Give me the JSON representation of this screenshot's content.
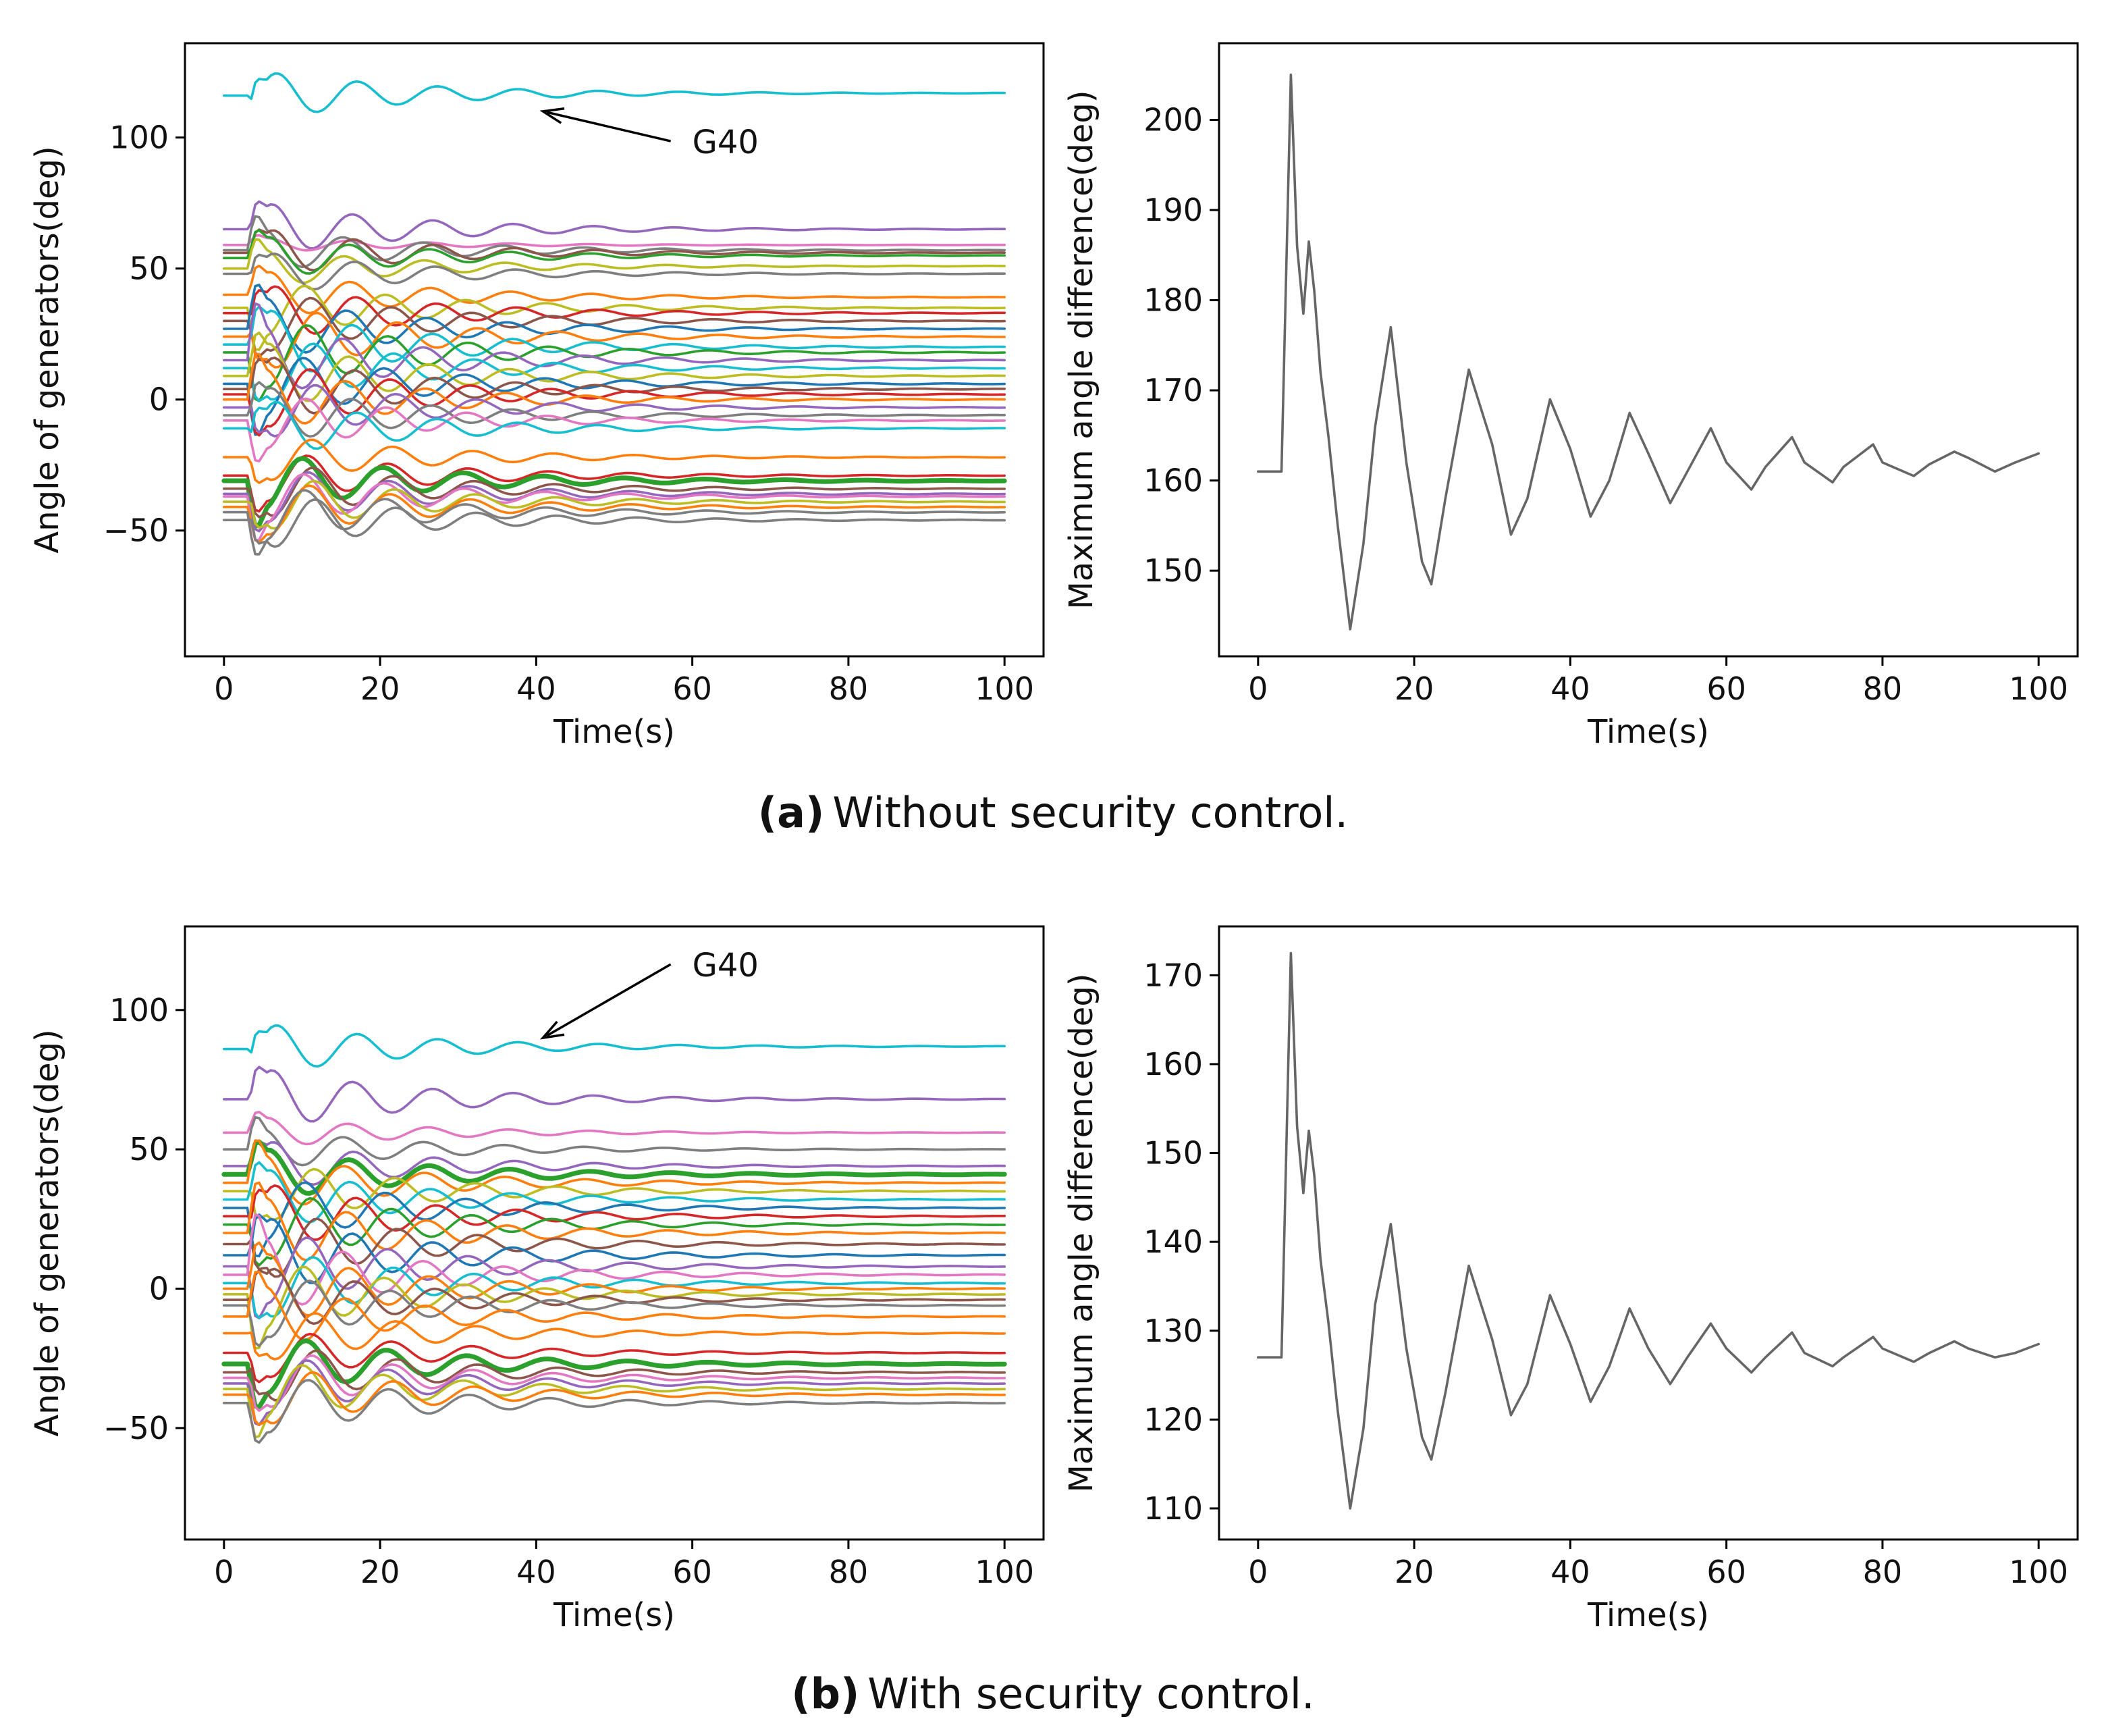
{
  "chart_data": [
    {
      "type": "line",
      "panel": "a-left",
      "xlabel": "Time(s)",
      "ylabel": "Angle of generators(deg)",
      "xlim": [
        -5,
        105
      ],
      "ylim": [
        -98,
        136
      ],
      "xticks": [
        0,
        20,
        40,
        60,
        80,
        100
      ],
      "yticks": [
        -50,
        0,
        50,
        100
      ],
      "grid": false,
      "legend": "none",
      "annotation": {
        "text": "G40",
        "arrow_to": [
          40,
          110
        ],
        "text_at": [
          60,
          95
        ]
      },
      "series": [
        {
          "base": 116,
          "final": 117,
          "amp": 10,
          "color": "#17becf",
          "label_point": "G40"
        },
        {
          "base": 65,
          "final": 65,
          "amp": 11,
          "color": "#9467bd"
        },
        {
          "base": 59,
          "final": 59,
          "amp": 3,
          "color": "#e377c2"
        },
        {
          "base": 57,
          "final": 57,
          "amp": 9,
          "color": "#7f7f7f"
        },
        {
          "base": 56,
          "final": 56,
          "amp": 10,
          "color": "#8c564b"
        },
        {
          "base": 54,
          "final": 55,
          "amp": 9,
          "color": "#2ca02c"
        },
        {
          "base": 50,
          "final": 51,
          "amp": 8,
          "color": "#bcbd22"
        },
        {
          "base": 48,
          "final": 48,
          "amp": 9,
          "color": "#7f7f7f"
        },
        {
          "base": 40,
          "final": 39,
          "amp": 10,
          "color": "#ff7f0e"
        },
        {
          "base": 35,
          "final": 35,
          "amp": 12,
          "color": "#bcbd22"
        },
        {
          "base": 33,
          "final": 33,
          "amp": 12,
          "color": "#d62728"
        },
        {
          "base": 30,
          "final": 30,
          "amp": 13,
          "color": "#8c564b"
        },
        {
          "base": 27,
          "final": 27,
          "amp": 13,
          "color": "#1f77b4"
        },
        {
          "base": 24,
          "final": 24,
          "amp": 14,
          "color": "#ff7f0e"
        },
        {
          "base": 21,
          "final": 20,
          "amp": 15,
          "color": "#17becf"
        },
        {
          "base": 18,
          "final": 18,
          "amp": 15,
          "color": "#2ca02c"
        },
        {
          "base": 15,
          "final": 15,
          "amp": 15,
          "color": "#9467bd"
        },
        {
          "base": 12,
          "final": 12,
          "amp": 14,
          "color": "#17becf"
        },
        {
          "base": 9,
          "final": 9,
          "amp": 14,
          "color": "#bcbd22"
        },
        {
          "base": 6,
          "final": 6,
          "amp": 14,
          "color": "#1f77b4"
        },
        {
          "base": 4,
          "final": 4,
          "amp": 14,
          "color": "#8c564b"
        },
        {
          "base": 2,
          "final": 2,
          "amp": 14,
          "color": "#d62728"
        },
        {
          "base": 0,
          "final": 0,
          "amp": 13,
          "color": "#ff7f0e"
        },
        {
          "base": -3,
          "final": -3,
          "amp": 13,
          "color": "#9467bd"
        },
        {
          "base": -6,
          "final": -6,
          "amp": 12,
          "color": "#7f7f7f"
        },
        {
          "base": -8,
          "final": -8,
          "amp": 12,
          "color": "#e377c2"
        },
        {
          "base": -11,
          "final": -11,
          "amp": 12,
          "color": "#17becf"
        },
        {
          "base": -22,
          "final": -22,
          "amp": 10,
          "color": "#ff7f0e"
        },
        {
          "base": -29,
          "final": -29,
          "amp": 11,
          "color": "#d62728"
        },
        {
          "base": -31,
          "final": -31,
          "amp": 12,
          "color": "#2ca02c",
          "thick": true
        },
        {
          "base": -34,
          "final": -34,
          "amp": 12,
          "color": "#8c564b"
        },
        {
          "base": -36,
          "final": -36,
          "amp": 12,
          "color": "#9467bd"
        },
        {
          "base": -37,
          "final": -37,
          "amp": 12,
          "color": "#e377c2"
        },
        {
          "base": -39,
          "final": -39,
          "amp": 12,
          "color": "#bcbd22"
        },
        {
          "base": -41,
          "final": -41,
          "amp": 12,
          "color": "#ff7f0e"
        },
        {
          "base": -43,
          "final": -43,
          "amp": 12,
          "color": "#7f7f7f"
        },
        {
          "base": -46,
          "final": -46,
          "amp": 12,
          "color": "#7f7f7f"
        }
      ]
    },
    {
      "type": "line",
      "panel": "a-right",
      "xlabel": "Time(s)",
      "ylabel": "Maximum angle difference(deg)",
      "xlim": [
        -5,
        105
      ],
      "ylim": [
        140.5,
        208.5
      ],
      "xticks": [
        0,
        20,
        40,
        60,
        80,
        100
      ],
      "yticks": [
        150,
        160,
        170,
        180,
        190,
        200
      ],
      "grid": false,
      "legend": "none",
      "series": [
        {
          "color": "#666666",
          "x": [
            0,
            3,
            4.2,
            5,
            5.8,
            6.5,
            7.2,
            8,
            9,
            10.2,
            11.8,
            13.5,
            15,
            17,
            19,
            21,
            22.2,
            24,
            27,
            30,
            32.4,
            34.5,
            37.4,
            40,
            42.6,
            45,
            47.6,
            50,
            52.8,
            55,
            58,
            60,
            63.2,
            65,
            68.4,
            70,
            73.6,
            75,
            78.8,
            80,
            84,
            86,
            89.2,
            91,
            94.4,
            97,
            100
          ],
          "y": [
            161,
            161,
            205,
            186,
            178.5,
            186.5,
            181,
            172,
            165,
            155,
            143.5,
            153,
            166,
            177,
            162,
            151,
            148.5,
            158,
            172.3,
            164,
            154,
            158,
            169,
            163.5,
            156,
            160,
            167.5,
            163,
            157.5,
            161,
            165.8,
            162,
            159,
            161.5,
            164.8,
            162,
            159.8,
            161.5,
            164,
            162,
            160.5,
            161.8,
            163.2,
            162.5,
            161,
            162,
            163
          ]
        }
      ]
    },
    {
      "type": "line",
      "panel": "b-left",
      "xlabel": "Time(s)",
      "ylabel": "Angle of generators(deg)",
      "xlim": [
        -5,
        105
      ],
      "ylim": [
        -90,
        130
      ],
      "xticks": [
        0,
        20,
        40,
        60,
        80,
        100
      ],
      "yticks": [
        -50,
        0,
        50,
        100
      ],
      "grid": false,
      "legend": "none",
      "annotation": {
        "text": "G40",
        "arrow_to": [
          40,
          90
        ],
        "text_at": [
          60,
          113
        ]
      },
      "series": [
        {
          "base": 86,
          "final": 87,
          "amp": 10,
          "color": "#17becf",
          "label_point": "G40"
        },
        {
          "base": 68,
          "final": 68,
          "amp": 12,
          "color": "#9467bd"
        },
        {
          "base": 56,
          "final": 56,
          "amp": 6,
          "color": "#e377c2"
        },
        {
          "base": 50,
          "final": 50,
          "amp": 8,
          "color": "#7f7f7f"
        },
        {
          "base": 44,
          "final": 44,
          "amp": 10,
          "color": "#9467bd"
        },
        {
          "base": 41,
          "final": 41,
          "amp": 10,
          "color": "#2ca02c",
          "thick": true
        },
        {
          "base": 38,
          "final": 38,
          "amp": 11,
          "color": "#ff7f0e"
        },
        {
          "base": 35,
          "final": 35,
          "amp": 12,
          "color": "#bcbd22"
        },
        {
          "base": 32,
          "final": 32,
          "amp": 12,
          "color": "#17becf"
        },
        {
          "base": 29,
          "final": 29,
          "amp": 13,
          "color": "#1f77b4"
        },
        {
          "base": 26,
          "final": 26,
          "amp": 13,
          "color": "#d62728"
        },
        {
          "base": 23,
          "final": 23,
          "amp": 14,
          "color": "#2ca02c"
        },
        {
          "base": 20,
          "final": 20,
          "amp": 14,
          "color": "#ff7f0e"
        },
        {
          "base": 16,
          "final": 16,
          "amp": 14,
          "color": "#8c564b"
        },
        {
          "base": 12,
          "final": 12,
          "amp": 15,
          "color": "#1f77b4"
        },
        {
          "base": 8,
          "final": 8,
          "amp": 15,
          "color": "#9467bd"
        },
        {
          "base": 5,
          "final": 5,
          "amp": 15,
          "color": "#e377c2"
        },
        {
          "base": 2,
          "final": 2,
          "amp": 14,
          "color": "#17becf"
        },
        {
          "base": 0,
          "final": 0,
          "amp": 14,
          "color": "#ff7f0e"
        },
        {
          "base": -2,
          "final": -2,
          "amp": 14,
          "color": "#bcbd22"
        },
        {
          "base": -4,
          "final": -4,
          "amp": 13,
          "color": "#8c564b"
        },
        {
          "base": -6,
          "final": -6,
          "amp": 13,
          "color": "#7f7f7f"
        },
        {
          "base": -10,
          "final": -10,
          "amp": 12,
          "color": "#ff7f0e"
        },
        {
          "base": -16,
          "final": -16,
          "amp": 11,
          "color": "#ff7f0e"
        },
        {
          "base": -23,
          "final": -23,
          "amp": 10,
          "color": "#d62728"
        },
        {
          "base": -27,
          "final": -27,
          "amp": 12,
          "color": "#2ca02c",
          "thick": true
        },
        {
          "base": -30,
          "final": -30,
          "amp": 12,
          "color": "#8c564b"
        },
        {
          "base": -32,
          "final": -32,
          "amp": 12,
          "color": "#e377c2"
        },
        {
          "base": -34,
          "final": -34,
          "amp": 12,
          "color": "#9467bd"
        },
        {
          "base": -36,
          "final": -36,
          "amp": 12,
          "color": "#bcbd22"
        },
        {
          "base": -38,
          "final": -38,
          "amp": 12,
          "color": "#ff7f0e"
        },
        {
          "base": -41,
          "final": -41,
          "amp": 12,
          "color": "#7f7f7f"
        }
      ]
    },
    {
      "type": "line",
      "panel": "b-right",
      "xlabel": "Time(s)",
      "ylabel": "Maximum angle difference(deg)",
      "xlim": [
        -5,
        105
      ],
      "ylim": [
        106.5,
        175.5
      ],
      "xticks": [
        0,
        20,
        40,
        60,
        80,
        100
      ],
      "yticks": [
        110,
        120,
        130,
        140,
        150,
        160,
        170
      ],
      "grid": false,
      "legend": "none",
      "series": [
        {
          "color": "#666666",
          "x": [
            0,
            3,
            4.2,
            5,
            5.8,
            6.5,
            7.2,
            8,
            9,
            10.2,
            11.8,
            13.5,
            15,
            17,
            19,
            21,
            22.2,
            24,
            27,
            30,
            32.4,
            34.5,
            37.4,
            40,
            42.6,
            45,
            47.6,
            50,
            52.8,
            55,
            58,
            60,
            63.2,
            65,
            68.4,
            70,
            73.6,
            75,
            78.8,
            80,
            84,
            86,
            89.2,
            91,
            94.4,
            97,
            100
          ],
          "y": [
            127,
            127,
            172.5,
            153,
            145.5,
            152.5,
            147.5,
            138,
            131,
            121,
            110,
            119,
            133,
            142,
            128,
            118,
            115.5,
            123,
            137.3,
            129,
            120.5,
            124,
            134,
            128.5,
            122,
            126,
            132.5,
            128,
            124,
            127,
            130.8,
            128,
            125.3,
            127,
            129.8,
            127.5,
            126,
            127,
            129.3,
            128,
            126.5,
            127.5,
            128.8,
            128,
            127,
            127.5,
            128.5
          ]
        }
      ]
    }
  ],
  "captions": {
    "a": {
      "letter": "(a)",
      "text": "Without security control."
    },
    "b": {
      "letter": "(b)",
      "text": "With security control."
    }
  }
}
